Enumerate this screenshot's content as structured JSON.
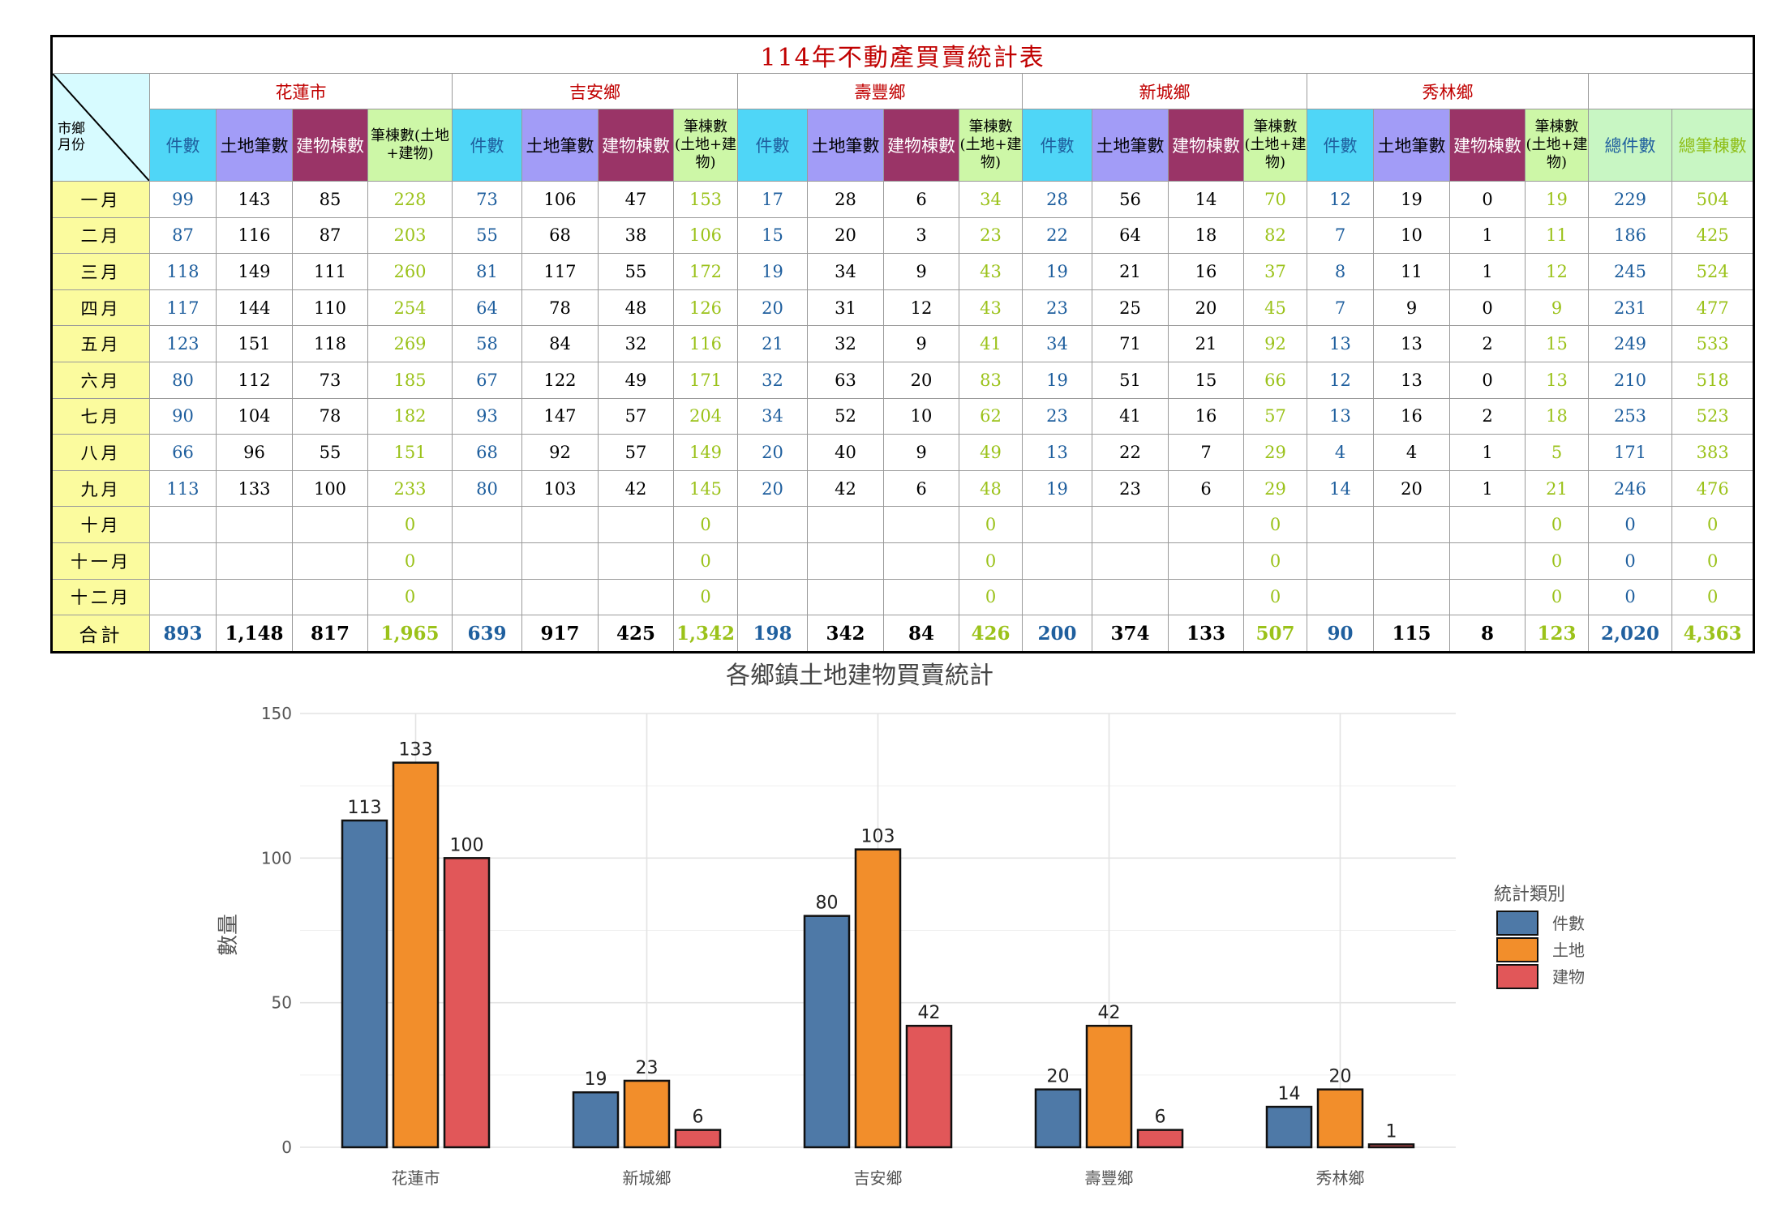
{
  "table": {
    "title": "114年不動產買賣統計表",
    "corner_top": "市鄉",
    "corner_bottom": "月份",
    "towns": [
      "花蓮市",
      "吉安鄉",
      "壽豐鄉",
      "新城鄉",
      "秀林鄉"
    ],
    "sub_headers": {
      "count": "件數",
      "land": "土地筆數",
      "building": "建物棟數",
      "sum_a": "筆棟數(土地+建物)",
      "sum_b": "筆棟數(土地+建物)"
    },
    "total_headers": {
      "count": "總件數",
      "sum": "總筆棟數"
    },
    "rows": [
      {
        "month": "一月",
        "cells": [
          [
            "99",
            "143",
            "85",
            "228"
          ],
          [
            "73",
            "106",
            "47",
            "153"
          ],
          [
            "17",
            "28",
            "6",
            "34"
          ],
          [
            "28",
            "56",
            "14",
            "70"
          ],
          [
            "12",
            "19",
            "0",
            "19"
          ]
        ],
        "total_count": "229",
        "total_sum": "504"
      },
      {
        "month": "二月",
        "cells": [
          [
            "87",
            "116",
            "87",
            "203"
          ],
          [
            "55",
            "68",
            "38",
            "106"
          ],
          [
            "15",
            "20",
            "3",
            "23"
          ],
          [
            "22",
            "64",
            "18",
            "82"
          ],
          [
            "7",
            "10",
            "1",
            "11"
          ]
        ],
        "total_count": "186",
        "total_sum": "425"
      },
      {
        "month": "三月",
        "cells": [
          [
            "118",
            "149",
            "111",
            "260"
          ],
          [
            "81",
            "117",
            "55",
            "172"
          ],
          [
            "19",
            "34",
            "9",
            "43"
          ],
          [
            "19",
            "21",
            "16",
            "37"
          ],
          [
            "8",
            "11",
            "1",
            "12"
          ]
        ],
        "total_count": "245",
        "total_sum": "524"
      },
      {
        "month": "四月",
        "cells": [
          [
            "117",
            "144",
            "110",
            "254"
          ],
          [
            "64",
            "78",
            "48",
            "126"
          ],
          [
            "20",
            "31",
            "12",
            "43"
          ],
          [
            "23",
            "25",
            "20",
            "45"
          ],
          [
            "7",
            "9",
            "0",
            "9"
          ]
        ],
        "total_count": "231",
        "total_sum": "477"
      },
      {
        "month": "五月",
        "cells": [
          [
            "123",
            "151",
            "118",
            "269"
          ],
          [
            "58",
            "84",
            "32",
            "116"
          ],
          [
            "21",
            "32",
            "9",
            "41"
          ],
          [
            "34",
            "71",
            "21",
            "92"
          ],
          [
            "13",
            "13",
            "2",
            "15"
          ]
        ],
        "total_count": "249",
        "total_sum": "533"
      },
      {
        "month": "六月",
        "cells": [
          [
            "80",
            "112",
            "73",
            "185"
          ],
          [
            "67",
            "122",
            "49",
            "171"
          ],
          [
            "32",
            "63",
            "20",
            "83"
          ],
          [
            "19",
            "51",
            "15",
            "66"
          ],
          [
            "12",
            "13",
            "0",
            "13"
          ]
        ],
        "total_count": "210",
        "total_sum": "518"
      },
      {
        "month": "七月",
        "cells": [
          [
            "90",
            "104",
            "78",
            "182"
          ],
          [
            "93",
            "147",
            "57",
            "204"
          ],
          [
            "34",
            "52",
            "10",
            "62"
          ],
          [
            "23",
            "41",
            "16",
            "57"
          ],
          [
            "13",
            "16",
            "2",
            "18"
          ]
        ],
        "total_count": "253",
        "total_sum": "523"
      },
      {
        "month": "八月",
        "cells": [
          [
            "66",
            "96",
            "55",
            "151"
          ],
          [
            "68",
            "92",
            "57",
            "149"
          ],
          [
            "20",
            "40",
            "9",
            "49"
          ],
          [
            "13",
            "22",
            "7",
            "29"
          ],
          [
            "4",
            "4",
            "1",
            "5"
          ]
        ],
        "total_count": "171",
        "total_sum": "383"
      },
      {
        "month": "九月",
        "cells": [
          [
            "113",
            "133",
            "100",
            "233"
          ],
          [
            "80",
            "103",
            "42",
            "145"
          ],
          [
            "20",
            "42",
            "6",
            "48"
          ],
          [
            "19",
            "23",
            "6",
            "29"
          ],
          [
            "14",
            "20",
            "1",
            "21"
          ]
        ],
        "total_count": "246",
        "total_sum": "476"
      },
      {
        "month": "十月",
        "cells": [
          [
            "",
            "",
            "",
            "0"
          ],
          [
            "",
            "",
            "",
            "0"
          ],
          [
            "",
            "",
            "",
            "0"
          ],
          [
            "",
            "",
            "",
            "0"
          ],
          [
            "",
            "",
            "",
            "0"
          ]
        ],
        "total_count": "0",
        "total_sum": "0"
      },
      {
        "month": "十一月",
        "cells": [
          [
            "",
            "",
            "",
            "0"
          ],
          [
            "",
            "",
            "",
            "0"
          ],
          [
            "",
            "",
            "",
            "0"
          ],
          [
            "",
            "",
            "",
            "0"
          ],
          [
            "",
            "",
            "",
            "0"
          ]
        ],
        "total_count": "0",
        "total_sum": "0"
      },
      {
        "month": "十二月",
        "cells": [
          [
            "",
            "",
            "",
            "0"
          ],
          [
            "",
            "",
            "",
            "0"
          ],
          [
            "",
            "",
            "",
            "0"
          ],
          [
            "",
            "",
            "",
            "0"
          ],
          [
            "",
            "",
            "",
            "0"
          ]
        ],
        "total_count": "0",
        "total_sum": "0"
      }
    ],
    "total_row": {
      "label": "合計",
      "cells": [
        [
          "893",
          "1,148",
          "817",
          "1,965"
        ],
        [
          "639",
          "917",
          "425",
          "1,342"
        ],
        [
          "198",
          "342",
          "84",
          "426"
        ],
        [
          "200",
          "374",
          "133",
          "507"
        ],
        [
          "90",
          "115",
          "8",
          "123"
        ]
      ],
      "total_count": "2,020",
      "total_sum": "4,363"
    }
  },
  "chart_data": {
    "type": "bar",
    "title": "各鄉鎮土地建物買賣統計",
    "xlabel": "",
    "ylabel": "數量",
    "ylim": [
      0,
      150
    ],
    "yticks": [
      0,
      50,
      100,
      150
    ],
    "grid": true,
    "legend_title": "統計類別",
    "legend_position": "right",
    "categories": [
      "花蓮市",
      "新城鄉",
      "吉安鄉",
      "壽豐鄉",
      "秀林鄉"
    ],
    "series": [
      {
        "name": "件數",
        "color": "#4e79a7",
        "values": [
          113,
          19,
          80,
          20,
          14
        ]
      },
      {
        "name": "土地",
        "color": "#f28e2b",
        "values": [
          133,
          23,
          103,
          42,
          20
        ]
      },
      {
        "name": "建物",
        "color": "#e15759",
        "values": [
          100,
          6,
          42,
          6,
          1
        ]
      }
    ]
  }
}
